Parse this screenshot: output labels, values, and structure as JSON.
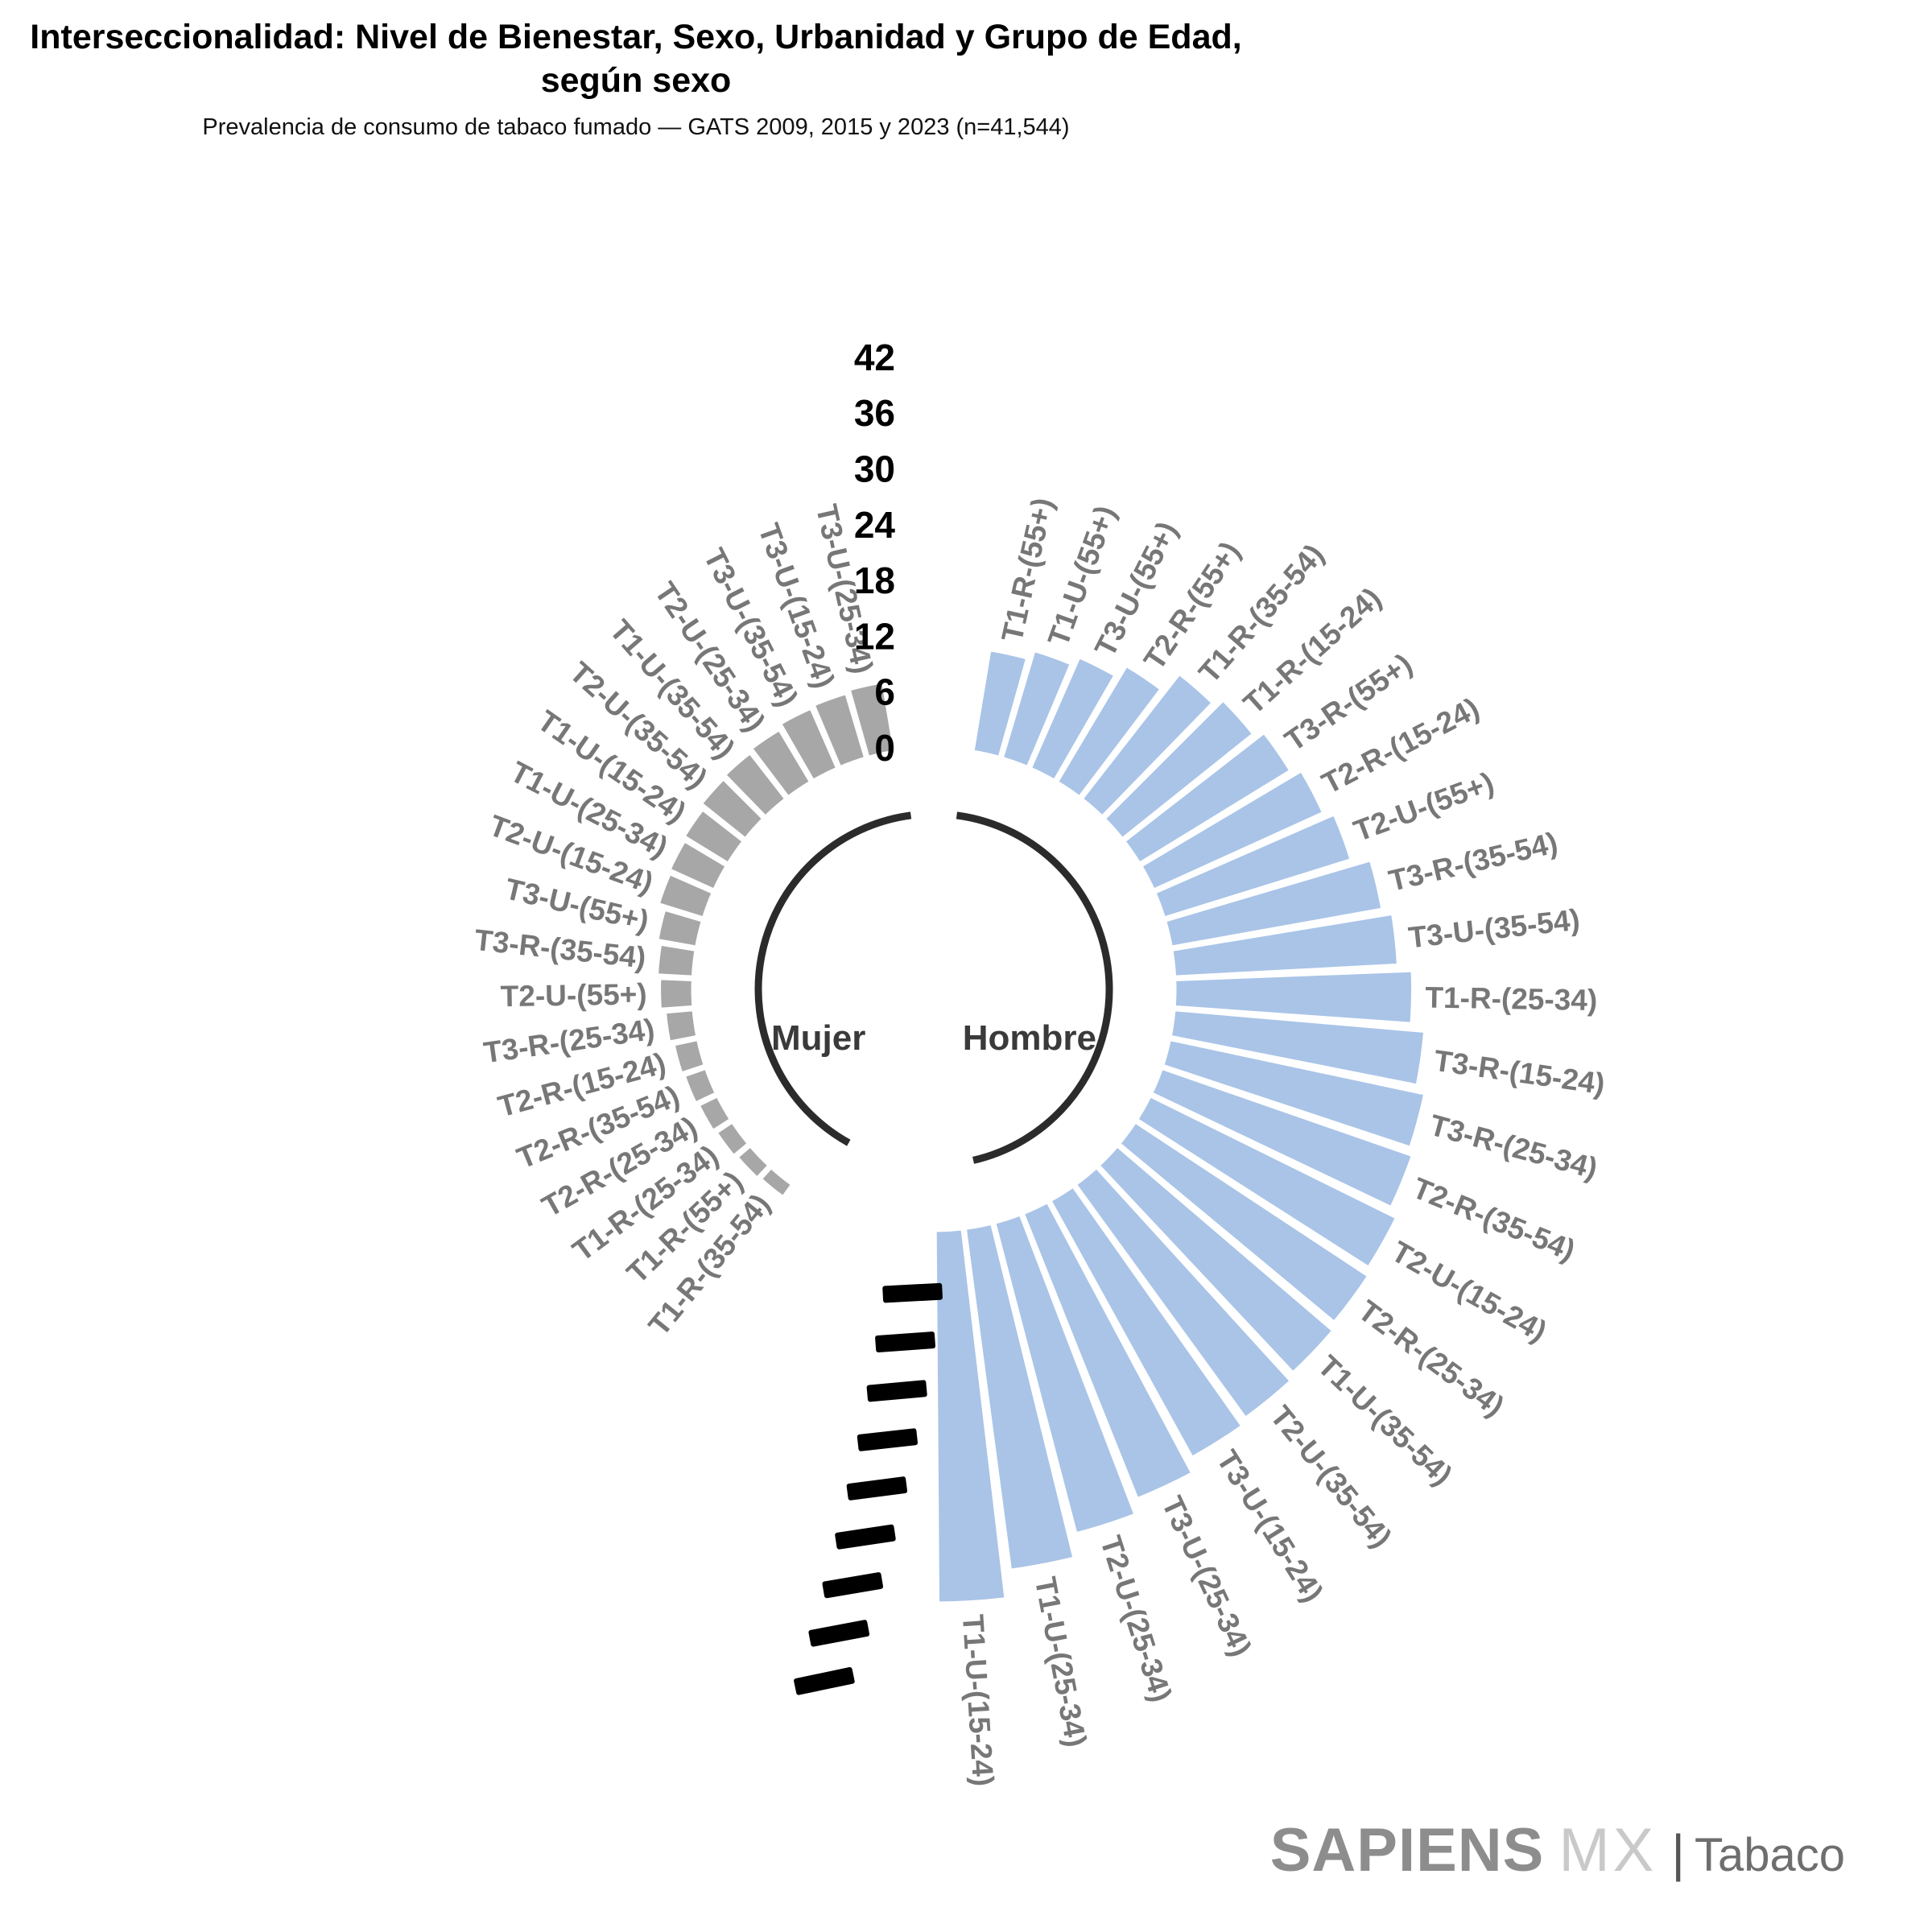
{
  "title": "Interseccionalidad: Nivel de Bienestar, Sexo, Urbanidad y Grupo de Edad, según sexo",
  "subtitle": "Prevalencia de consumo de tabaco fumado — GATS 2009, 2015 y 2023 (n=41,544)",
  "center_labels": {
    "left": "Mujer",
    "right": "Hombre"
  },
  "axis": {
    "ticks": [
      0,
      6,
      12,
      18,
      24,
      30,
      36,
      42
    ],
    "max": 42
  },
  "chart_data": {
    "type": "bar",
    "subtype": "radial-half-circles",
    "title": "Interseccionalidad: Nivel de Bienestar, Sexo, Urbanidad y Grupo de Edad, según sexo",
    "radial_axis": {
      "min": 0,
      "max": 42,
      "tick_step": 6
    },
    "legend_position": "center-of-rings",
    "series": [
      {
        "name": "Hombre",
        "side": "right",
        "color": "#a9c4e7",
        "categories": [
          "T1-R-(55+)",
          "T1-U-(55+)",
          "T3-U-(55+)",
          "T2-R-(55+)",
          "T1-R-(35-54)",
          "T1-R-(15-24)",
          "T3-R-(55+)",
          "T2-R-(15-24)",
          "T2-U-(55+)",
          "T3-R-(35-54)",
          "T3-U-(35-54)",
          "T1-R-(25-34)",
          "T3-R-(15-24)",
          "T3-R-(25-34)",
          "T2-R-(35-54)",
          "T2-U-(15-24)",
          "T2-R-(25-34)",
          "T1-U-(35-54)",
          "T2-U-(35-54)",
          "T3-U-(15-24)",
          "T3-U-(25-34)",
          "T2-U-(25-34)",
          "T1-U-(25-34)",
          "T1-U-(15-24)"
        ],
        "values": [
          11,
          12,
          13,
          14.5,
          17,
          18,
          19,
          20,
          21,
          23,
          24,
          25.5,
          27,
          28,
          28.5,
          29.5,
          30,
          30.5,
          31,
          31.5,
          33,
          34.5,
          37,
          40
        ]
      },
      {
        "name": "Mujer",
        "side": "left",
        "color": "#a7a7a7",
        "categories": [
          "T3-U-(25-34)",
          "T3-U-(15-24)",
          "T3-U-(35-54)",
          "T2-U-(25-34)",
          "T1-U-(35-54)",
          "T2-U-(35-54)",
          "T1-U-(15-24)",
          "T1-U-(25-34)",
          "T2-U-(15-24)",
          "T3-U-(55+)",
          "T3-R-(35-54)",
          "T2-U-(55+)",
          "T3-R-(25-34)",
          "T2-R-(15-24)",
          "T2-R-(35-54)",
          "T2-R-(25-34)",
          "T1-R-(25-34)",
          "T1-R-(55+)",
          "T1-R-(35-54)"
        ],
        "values": [
          7.5,
          7.2,
          7,
          6.5,
          6.2,
          6,
          5.5,
          5.2,
          5,
          4.2,
          3.8,
          3.5,
          3,
          2.6,
          2.4,
          2.2,
          2,
          1.8,
          1.6
        ]
      }
    ]
  },
  "separator_dashes": {
    "count": 9,
    "color": "#000000"
  },
  "colors": {
    "hombre_bar": "#a9c4e7",
    "mujer_bar": "#a7a7a7",
    "sector_label": "#777777",
    "inner_arc": "#2b2b2b",
    "tick_label": "#000000",
    "center_label": "#3a3a3a"
  },
  "logo": {
    "brand": "SAPIENS",
    "mx": "MX",
    "divider": "|",
    "product": "Tabaco"
  }
}
